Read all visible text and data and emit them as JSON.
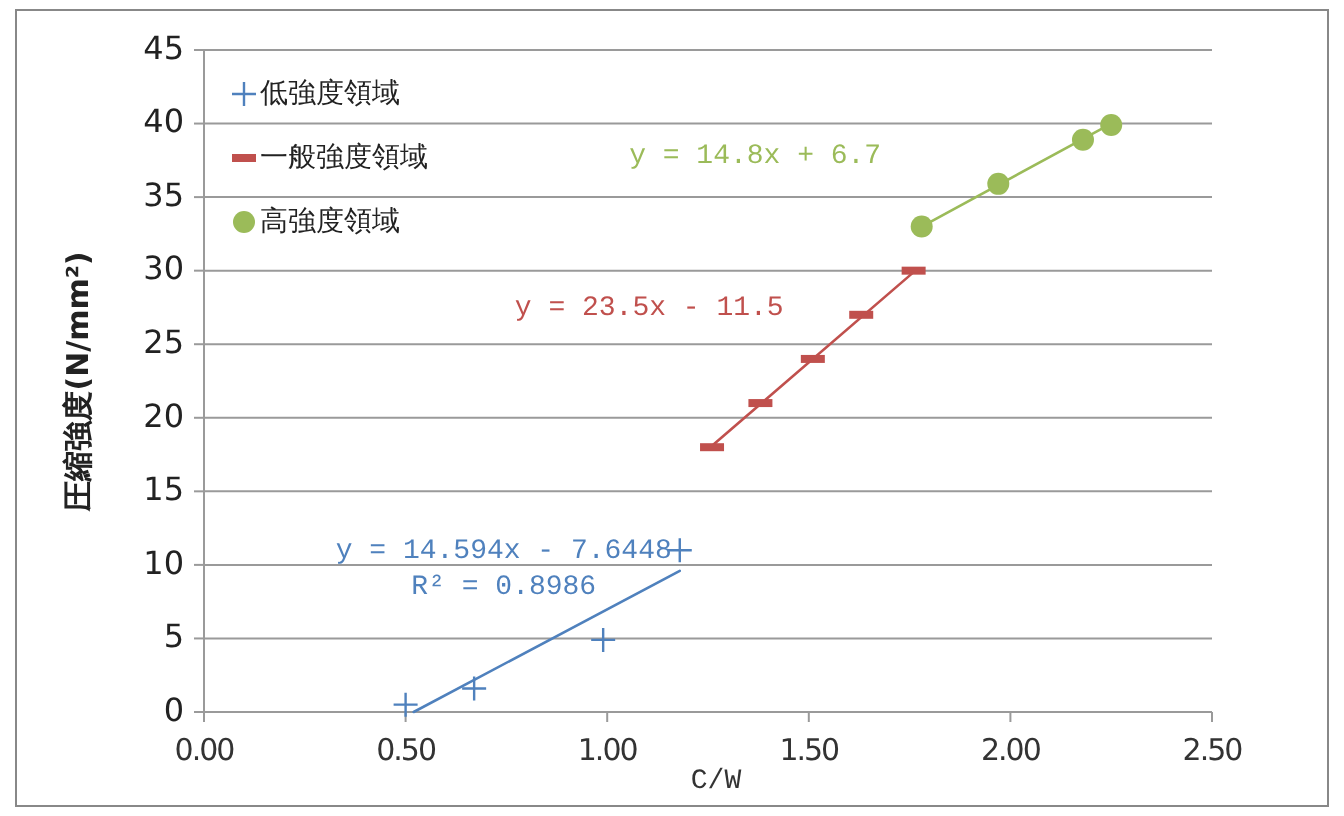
{
  "chart_data": {
    "type": "scatter",
    "xlabel": "C/W",
    "ylabel": "圧縮強度(N/mm²)",
    "xlim": [
      0,
      2.5
    ],
    "xticks": [
      {
        "value": 0,
        "label": "0.00"
      },
      {
        "value": 0.5,
        "label": "0.50"
      },
      {
        "value": 1,
        "label": "1.00"
      },
      {
        "value": 1.5,
        "label": "1.50"
      },
      {
        "value": 2,
        "label": "2.00"
      },
      {
        "value": 2.5,
        "label": "2.50"
      }
    ],
    "ylim": [
      0,
      45
    ],
    "yticks": [
      0,
      5,
      10,
      15,
      20,
      25,
      30,
      35,
      40,
      45
    ],
    "grid": "y",
    "legend": "top left",
    "series": [
      {
        "name": "低強度領域",
        "marker": "cross",
        "color": "#4f81bd",
        "x": [
          0.5,
          0.67,
          0.99,
          1.18
        ],
        "values": [
          0.5,
          1.6,
          4.9,
          11
        ]
      },
      {
        "name": "一般強度領域",
        "color": "#c0504d",
        "x": [
          1.26,
          1.38,
          1.51,
          1.63,
          1.76
        ],
        "values": [
          18,
          21,
          24,
          27,
          30
        ]
      },
      {
        "name": "高強度領域",
        "marker": "circle",
        "color": "#9bbb59",
        "x": [
          1.78,
          1.97,
          2.18,
          2.25
        ],
        "values": [
          33,
          35.9,
          38.9,
          39.9
        ]
      },
      {
        "type": "line",
        "color": "#4f81bd",
        "x": [
          0.52,
          1.18
        ],
        "values": [
          0,
          9.6
        ]
      },
      {
        "type": "line",
        "color": "#c0504d",
        "x": [
          1.26,
          1.76
        ],
        "values": [
          18.1,
          29.9
        ]
      },
      {
        "type": "line",
        "color": "#9bbb59",
        "x": [
          1.78,
          2.25
        ],
        "values": [
          33,
          40
        ]
      }
    ],
    "annotations": [
      "y = 14.594x - 7.6448\nR² = 0.8986",
      "y = 23.5x - 11.5",
      "y = 14.8x + 6.7"
    ]
  }
}
